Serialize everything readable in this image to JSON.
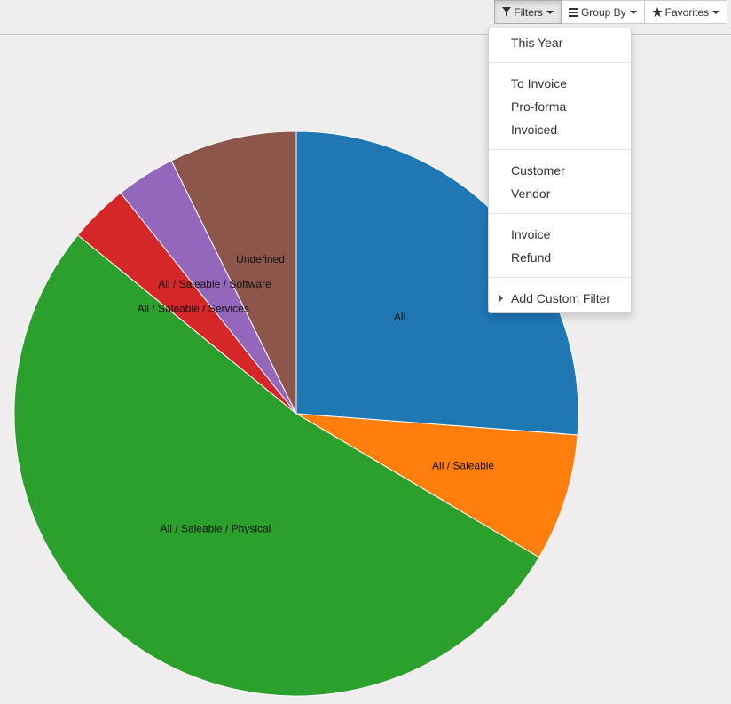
{
  "toolbar": {
    "filters_label": "Filters",
    "groupby_label": "Group By",
    "favorites_label": "Favorites",
    "filter_icon": "filter-icon",
    "groupby_icon": "bars-icon",
    "favorites_icon": "star-icon"
  },
  "filters_menu": {
    "groups": [
      [
        "This Year"
      ],
      [
        "To Invoice",
        "Pro-forma",
        "Invoiced"
      ],
      [
        "Customer",
        "Vendor"
      ],
      [
        "Invoice",
        "Refund"
      ]
    ],
    "custom_filter_label": "Add Custom Filter"
  },
  "chart_data": {
    "type": "pie",
    "categories": [
      "All",
      "All / Saleable",
      "All / Saleable / Physical",
      "All / Saleable / Services",
      "All / Saleable / Software",
      "Undefined"
    ],
    "values": [
      26.2,
      7.3,
      52.4,
      3.4,
      3.4,
      7.3
    ],
    "colors": [
      "#1f77b4",
      "#ff7f0e",
      "#2ca02c",
      "#d62728",
      "#9467bd",
      "#8c564b"
    ],
    "start_angle_deg": 0,
    "direction": "clockwise"
  }
}
